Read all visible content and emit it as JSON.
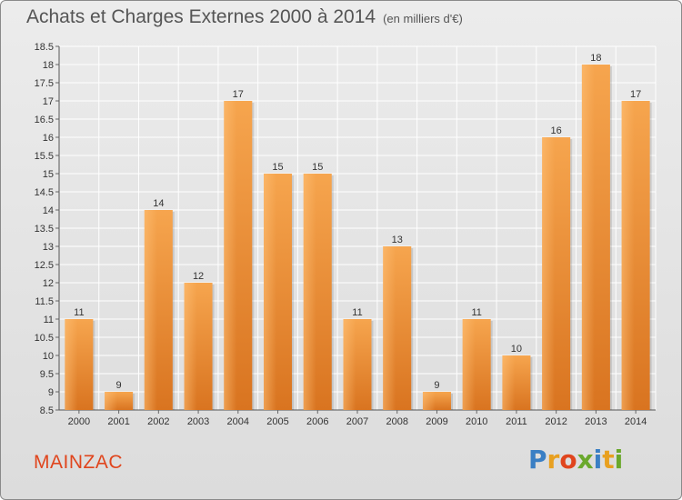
{
  "header": {
    "title": "Achats et Charges Externes 2000 à 2014",
    "subtitle": "(en milliers d'€)"
  },
  "footer": {
    "commune": "MAINZAC",
    "brand": "Proxiti"
  },
  "chart_data": {
    "type": "bar",
    "categories": [
      "2000",
      "2001",
      "2002",
      "2003",
      "2004",
      "2005",
      "2006",
      "2007",
      "2008",
      "2009",
      "2010",
      "2011",
      "2012",
      "2013",
      "2014"
    ],
    "values": [
      11,
      9,
      14,
      12,
      17,
      15,
      15,
      11,
      13,
      9,
      11,
      10,
      16,
      18,
      17
    ],
    "title": "Achats et Charges Externes 2000 à 2014",
    "subtitle": "(en milliers d'€)",
    "ylim": [
      8.5,
      18.5
    ],
    "yticks": [
      8.5,
      9,
      9.5,
      10,
      10.5,
      11,
      11.5,
      12,
      12.5,
      13,
      13.5,
      14,
      14.5,
      15,
      15.5,
      16,
      16.5,
      17,
      17.5,
      18,
      18.5
    ],
    "grid": true,
    "colors": {
      "bar_light": "#f6a54e",
      "bar_dark": "#d97420",
      "grid": "#ffffff"
    }
  }
}
